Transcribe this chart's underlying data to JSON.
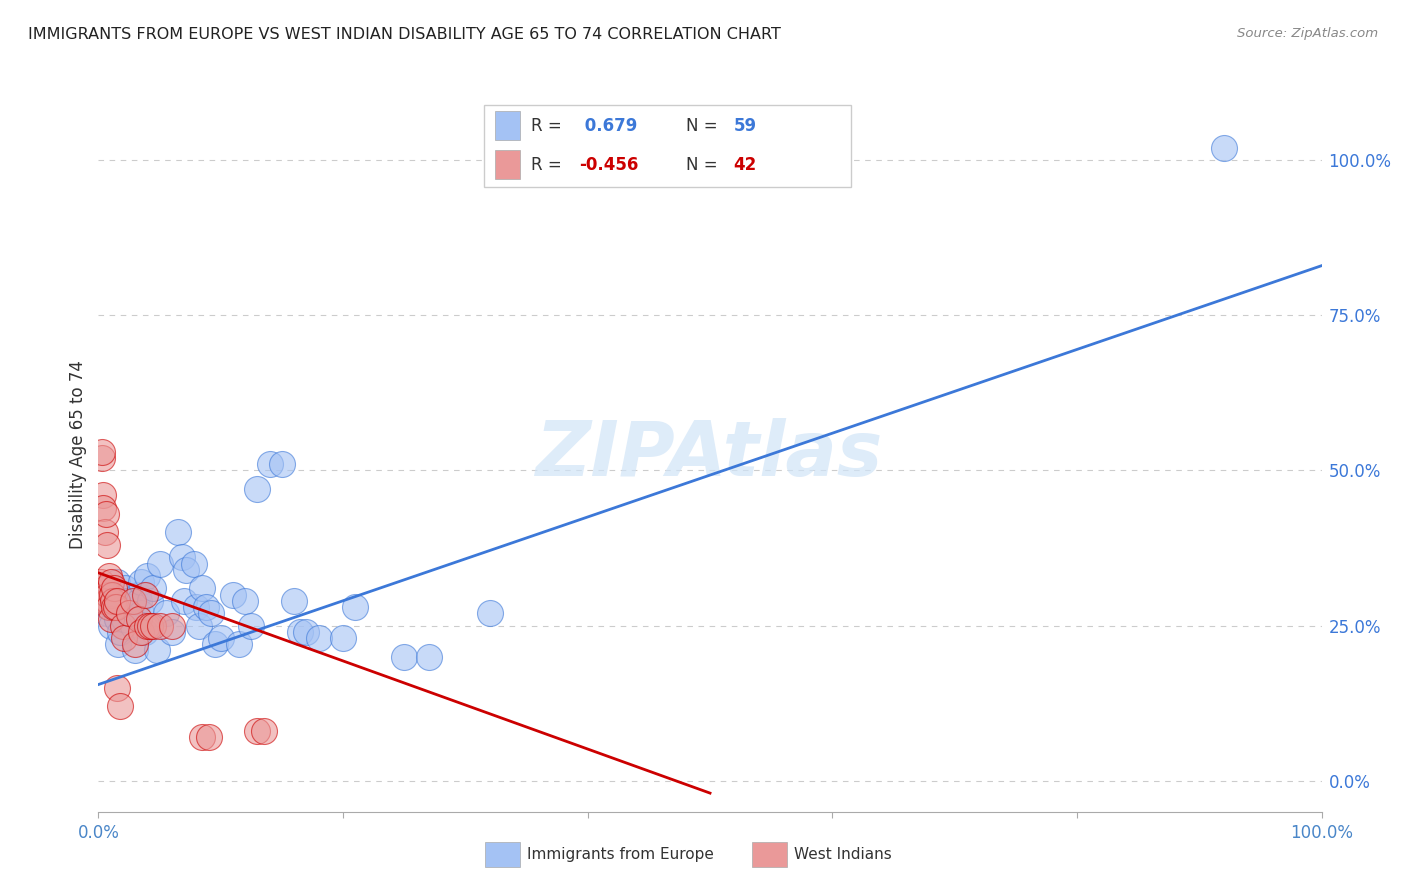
{
  "title": "IMMIGRANTS FROM EUROPE VS WEST INDIAN DISABILITY AGE 65 TO 74 CORRELATION CHART",
  "source": "Source: ZipAtlas.com",
  "ylabel": "Disability Age 65 to 74",
  "xlim": [
    0,
    1.0
  ],
  "ylim": [
    -0.05,
    1.1
  ],
  "xtick_positions": [
    0.0,
    0.2,
    0.4,
    0.6,
    0.8,
    1.0
  ],
  "xtick_labels": [
    "0.0%",
    "",
    "",
    "",
    "",
    "100.0%"
  ],
  "ytick_positions": [
    0.0,
    0.25,
    0.5,
    0.75,
    1.0
  ],
  "ytick_labels": [
    "0.0%",
    "25.0%",
    "50.0%",
    "75.0%",
    "100.0%"
  ],
  "watermark": "ZIPAtlas",
  "blue_R": 0.679,
  "blue_N": 59,
  "pink_R": -0.456,
  "pink_N": 42,
  "blue_fill": "#a4c2f4",
  "pink_fill": "#ea9999",
  "blue_line_color": "#3c78d8",
  "pink_line_color": "#cc0000",
  "right_axis_color": "#3c78d8",
  "legend_label_blue": "Immigrants from Europe",
  "legend_label_pink": "West Indians",
  "blue_scatter": [
    [
      0.005,
      0.29
    ],
    [
      0.007,
      0.27
    ],
    [
      0.008,
      0.28
    ],
    [
      0.01,
      0.25
    ],
    [
      0.012,
      0.28
    ],
    [
      0.013,
      0.3
    ],
    [
      0.015,
      0.32
    ],
    [
      0.015,
      0.26
    ],
    [
      0.016,
      0.22
    ],
    [
      0.018,
      0.24
    ],
    [
      0.02,
      0.28
    ],
    [
      0.021,
      0.26
    ],
    [
      0.022,
      0.31
    ],
    [
      0.023,
      0.29
    ],
    [
      0.025,
      0.27
    ],
    [
      0.026,
      0.28
    ],
    [
      0.028,
      0.25
    ],
    [
      0.03,
      0.21
    ],
    [
      0.032,
      0.3
    ],
    [
      0.033,
      0.29
    ],
    [
      0.035,
      0.27
    ],
    [
      0.035,
      0.32
    ],
    [
      0.038,
      0.24
    ],
    [
      0.04,
      0.33
    ],
    [
      0.042,
      0.29
    ],
    [
      0.045,
      0.31
    ],
    [
      0.048,
      0.21
    ],
    [
      0.05,
      0.35
    ],
    [
      0.055,
      0.27
    ],
    [
      0.06,
      0.24
    ],
    [
      0.065,
      0.4
    ],
    [
      0.068,
      0.36
    ],
    [
      0.07,
      0.29
    ],
    [
      0.072,
      0.34
    ],
    [
      0.078,
      0.35
    ],
    [
      0.08,
      0.28
    ],
    [
      0.082,
      0.25
    ],
    [
      0.085,
      0.31
    ],
    [
      0.088,
      0.28
    ],
    [
      0.092,
      0.27
    ],
    [
      0.095,
      0.22
    ],
    [
      0.1,
      0.23
    ],
    [
      0.11,
      0.3
    ],
    [
      0.115,
      0.22
    ],
    [
      0.12,
      0.29
    ],
    [
      0.125,
      0.25
    ],
    [
      0.13,
      0.47
    ],
    [
      0.14,
      0.51
    ],
    [
      0.15,
      0.51
    ],
    [
      0.16,
      0.29
    ],
    [
      0.165,
      0.24
    ],
    [
      0.17,
      0.24
    ],
    [
      0.18,
      0.23
    ],
    [
      0.2,
      0.23
    ],
    [
      0.21,
      0.28
    ],
    [
      0.25,
      0.2
    ],
    [
      0.27,
      0.2
    ],
    [
      0.32,
      0.27
    ],
    [
      0.92,
      1.02
    ]
  ],
  "pink_scatter": [
    [
      0.002,
      0.32
    ],
    [
      0.003,
      0.52
    ],
    [
      0.003,
      0.53
    ],
    [
      0.004,
      0.46
    ],
    [
      0.004,
      0.44
    ],
    [
      0.005,
      0.29
    ],
    [
      0.005,
      0.4
    ],
    [
      0.006,
      0.43
    ],
    [
      0.006,
      0.31
    ],
    [
      0.007,
      0.38
    ],
    [
      0.007,
      0.29
    ],
    [
      0.008,
      0.29
    ],
    [
      0.008,
      0.3
    ],
    [
      0.009,
      0.33
    ],
    [
      0.009,
      0.28
    ],
    [
      0.01,
      0.32
    ],
    [
      0.01,
      0.26
    ],
    [
      0.011,
      0.3
    ],
    [
      0.012,
      0.29
    ],
    [
      0.013,
      0.28
    ],
    [
      0.013,
      0.31
    ],
    [
      0.014,
      0.28
    ],
    [
      0.015,
      0.29
    ],
    [
      0.015,
      0.15
    ],
    [
      0.018,
      0.12
    ],
    [
      0.02,
      0.25
    ],
    [
      0.021,
      0.23
    ],
    [
      0.025,
      0.27
    ],
    [
      0.028,
      0.29
    ],
    [
      0.03,
      0.22
    ],
    [
      0.033,
      0.26
    ],
    [
      0.035,
      0.24
    ],
    [
      0.038,
      0.3
    ],
    [
      0.04,
      0.25
    ],
    [
      0.042,
      0.25
    ],
    [
      0.045,
      0.25
    ],
    [
      0.05,
      0.25
    ],
    [
      0.06,
      0.25
    ],
    [
      0.085,
      0.07
    ],
    [
      0.09,
      0.07
    ],
    [
      0.13,
      0.08
    ],
    [
      0.135,
      0.08
    ]
  ],
  "blue_line_x": [
    0.0,
    1.0
  ],
  "blue_line_y": [
    0.155,
    0.83
  ],
  "pink_line_x": [
    0.0,
    0.5
  ],
  "pink_line_y": [
    0.335,
    -0.02
  ]
}
